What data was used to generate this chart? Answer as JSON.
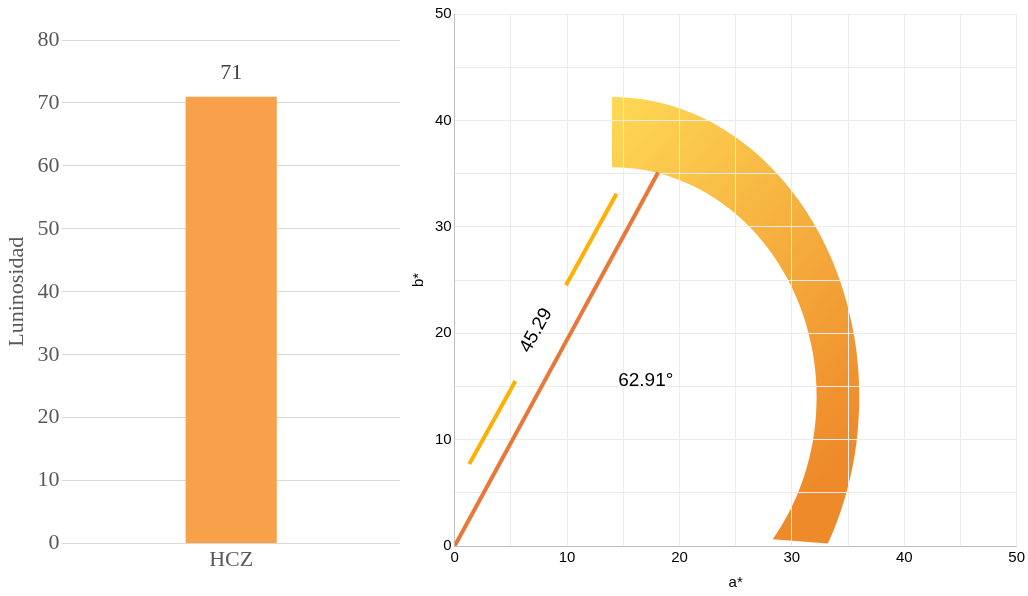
{
  "chart_data": [
    {
      "type": "bar",
      "ylabel": "Luninosidad",
      "categories": [
        "HCZ"
      ],
      "values": [
        71
      ],
      "color": "#f8a14a",
      "ylim": [
        0,
        80
      ],
      "yticks": [
        0,
        10,
        20,
        30,
        40,
        50,
        60,
        70,
        80
      ],
      "grid": "y",
      "data_labels": true
    },
    {
      "type": "line",
      "xlabel": "a*",
      "ylabel": "b*",
      "xlim": [
        0,
        50
      ],
      "ylim": [
        0,
        50
      ],
      "xticks": [
        0,
        {
          "value": 5,
          "label": null
        },
        10,
        {
          "value": 15,
          "label": null
        },
        20,
        {
          "value": 25,
          "label": null
        },
        30,
        {
          "value": 35,
          "label": null
        },
        40,
        {
          "value": 45,
          "label": null
        },
        50
      ],
      "yticks": [
        0,
        {
          "value": 5,
          "label": null
        },
        10,
        {
          "value": 15,
          "label": null
        },
        20,
        {
          "value": 25,
          "label": null
        },
        30,
        {
          "value": 35,
          "label": null
        },
        40,
        {
          "value": 45,
          "label": null
        },
        50
      ],
      "grid": true,
      "marker": "none",
      "series": [
        {
          "color": "#e8773a",
          "x": [
            0,
            18.1
          ],
          "values": [
            0,
            35.1
          ]
        },
        {
          "color": "#ffb000",
          "x": [
            1.3,
            5.4,
            7.6,
            9.9,
            14.4
          ],
          "values": [
            7.7,
            15.5,
            null,
            24.5,
            33.1
          ]
        }
      ],
      "annotations": [
        "45.29",
        "62.91°"
      ]
    }
  ]
}
